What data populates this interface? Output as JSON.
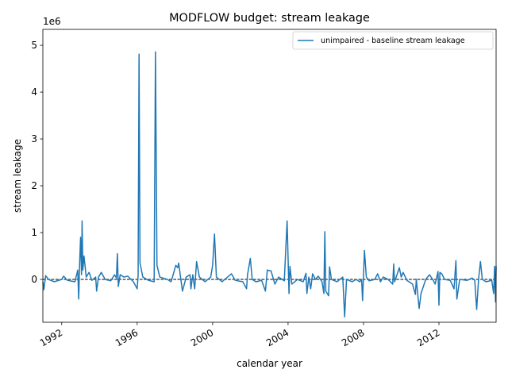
{
  "chart_data": {
    "type": "line",
    "title": "MODFLOW budget: stream leakage",
    "x_label": "calendar year",
    "y_label": "stream leakage",
    "y_offset_label": "1e6",
    "x": [
      1991.0,
      1991.05,
      1991.15,
      1991.3,
      1991.6,
      1992.0,
      1992.1,
      1992.3,
      1992.7,
      1992.85,
      1992.9,
      1992.95,
      1993.0,
      1993.05,
      1993.08,
      1993.12,
      1993.18,
      1993.3,
      1993.45,
      1993.6,
      1993.8,
      1993.85,
      1993.95,
      1994.1,
      1994.3,
      1994.6,
      1994.8,
      1994.9,
      1994.95,
      1995.0,
      1995.1,
      1995.3,
      1995.5,
      1995.8,
      1996.0,
      1996.05,
      1996.1,
      1996.15,
      1996.3,
      1996.6,
      1996.9,
      1996.97,
      1997.05,
      1997.2,
      1997.6,
      1997.8,
      1998.05,
      1998.15,
      1998.2,
      1998.4,
      1998.6,
      1998.8,
      1998.85,
      1998.95,
      1999.05,
      1999.15,
      1999.3,
      1999.6,
      1999.9,
      2000.0,
      2000.1,
      2000.2,
      2000.5,
      2001.0,
      2001.2,
      2001.6,
      2001.8,
      2001.85,
      2002.0,
      2002.1,
      2002.3,
      2002.6,
      2002.8,
      2002.9,
      2003.1,
      2003.3,
      2003.5,
      2003.8,
      2003.95,
      2004.05,
      2004.1,
      2004.2,
      2004.5,
      2004.8,
      2004.95,
      2005.0,
      2005.1,
      2005.2,
      2005.3,
      2005.45,
      2005.6,
      2005.8,
      2005.9,
      2005.95,
      2006.0,
      2006.15,
      2006.2,
      2006.3,
      2006.6,
      2006.9,
      2007.0,
      2007.1,
      2007.4,
      2007.6,
      2007.8,
      2007.9,
      2007.95,
      2008.05,
      2008.15,
      2008.3,
      2008.6,
      2008.75,
      2008.9,
      2009.05,
      2009.3,
      2009.55,
      2009.6,
      2009.65,
      2009.9,
      2010.0,
      2010.1,
      2010.3,
      2010.6,
      2010.75,
      2010.8,
      2010.95,
      2011.05,
      2011.3,
      2011.5,
      2011.7,
      2011.8,
      2011.95,
      2012.0,
      2012.05,
      2012.15,
      2012.3,
      2012.6,
      2012.8,
      2012.9,
      2012.95,
      2013.1,
      2013.5,
      2013.75,
      2013.9,
      2014.0,
      2014.1,
      2014.2,
      2014.3,
      2014.5,
      2014.8,
      2014.9,
      2014.95,
      2015.0,
      2015.03
    ],
    "series": [
      {
        "name": "unimpaired - baseline stream leakage",
        "color": "#1f77b4",
        "values": [
          -0.05,
          -0.22,
          0.08,
          0.0,
          -0.05,
          0.0,
          0.07,
          -0.02,
          -0.05,
          0.2,
          -0.42,
          0.35,
          0.9,
          0.1,
          1.25,
          0.2,
          0.5,
          0.05,
          0.15,
          -0.02,
          0.05,
          -0.25,
          0.05,
          0.15,
          0.0,
          -0.03,
          0.1,
          0.03,
          0.55,
          -0.15,
          0.1,
          0.05,
          0.07,
          -0.05,
          -0.2,
          0.08,
          4.81,
          0.35,
          0.05,
          -0.02,
          -0.05,
          4.86,
          0.3,
          0.05,
          0.0,
          -0.05,
          0.3,
          0.25,
          0.35,
          -0.25,
          0.05,
          0.1,
          -0.2,
          0.1,
          -0.2,
          0.38,
          0.05,
          -0.05,
          0.05,
          0.3,
          0.97,
          0.05,
          -0.05,
          0.12,
          -0.02,
          -0.05,
          -0.2,
          0.1,
          0.45,
          0.0,
          -0.05,
          -0.02,
          -0.25,
          0.2,
          0.18,
          -0.1,
          0.05,
          -0.03,
          1.25,
          -0.3,
          0.28,
          -0.1,
          0.0,
          -0.05,
          0.13,
          -0.3,
          0.05,
          -0.2,
          0.12,
          0.0,
          0.07,
          -0.05,
          -0.3,
          1.02,
          -0.25,
          -0.35,
          0.27,
          0.0,
          -0.05,
          0.05,
          -0.8,
          0.0,
          -0.05,
          0.0,
          -0.05,
          0.0,
          -0.45,
          0.62,
          0.05,
          -0.03,
          0.0,
          0.12,
          -0.05,
          0.05,
          0.0,
          -0.1,
          0.33,
          -0.05,
          0.25,
          0.05,
          0.15,
          -0.02,
          -0.1,
          -0.32,
          0.0,
          -0.62,
          -0.3,
          0.0,
          0.1,
          -0.02,
          -0.1,
          0.17,
          -0.55,
          0.15,
          0.12,
          0.0,
          -0.02,
          -0.2,
          0.4,
          -0.42,
          0.0,
          -0.02,
          0.03,
          -0.02,
          -0.64,
          0.0,
          0.38,
          0.0,
          -0.05,
          -0.02,
          -0.3,
          0.28,
          -0.48,
          0.28
        ]
      }
    ],
    "hline": 0,
    "xlim": [
      1991.0,
      2015.03
    ],
    "ylim": [
      -0.915,
      5.34
    ],
    "xticks": [
      1992,
      1996,
      2000,
      2004,
      2008,
      2012
    ],
    "yticks": [
      0,
      1,
      2,
      3,
      4,
      5
    ],
    "legend": "upper right"
  }
}
